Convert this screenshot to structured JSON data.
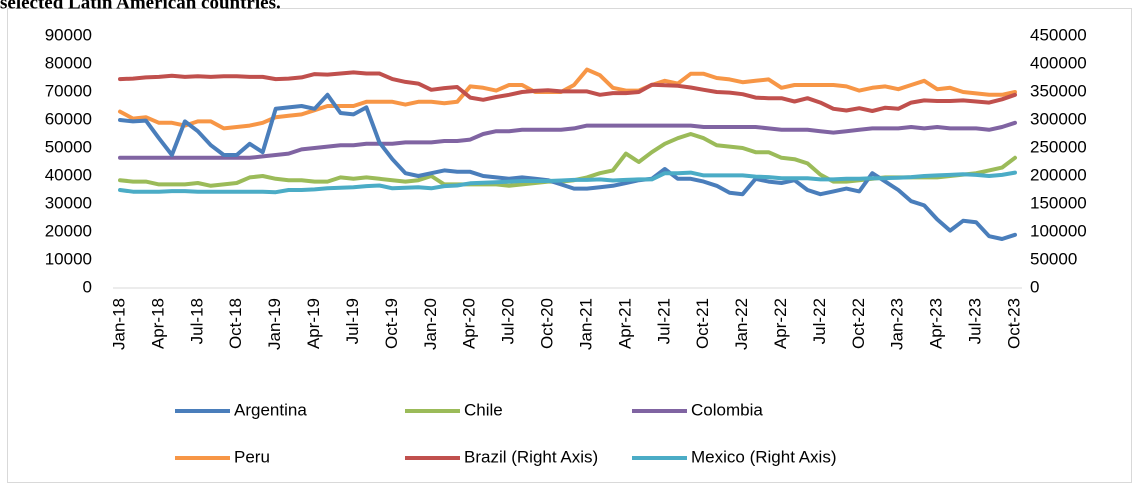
{
  "chart_data": {
    "type": "line",
    "caption": "selected Latin American countries.",
    "categories": [
      "Jan-18",
      null,
      null,
      "Apr-18",
      null,
      null,
      "Jul-18",
      null,
      null,
      "Oct-18",
      null,
      null,
      "Jan-19",
      null,
      null,
      "Apr-19",
      null,
      null,
      "Jul-19",
      null,
      null,
      "Oct-19",
      null,
      null,
      "Jan-20",
      null,
      null,
      "Apr-20",
      null,
      null,
      "Jul-20",
      null,
      null,
      "Oct-20",
      null,
      null,
      "Jan-21",
      null,
      null,
      "Apr-21",
      null,
      null,
      "Jul-21",
      null,
      null,
      "Oct-21",
      null,
      null,
      "Jan-22",
      null,
      null,
      "Apr-22",
      null,
      null,
      "Jul-22",
      null,
      null,
      "Oct-22",
      null,
      null,
      "Jan-23",
      null,
      null,
      "Apr-23",
      null,
      null,
      "Jul-23",
      null,
      null,
      "Oct-23"
    ],
    "ylim": [
      0,
      90000
    ],
    "yticks": [
      0,
      10000,
      20000,
      30000,
      40000,
      50000,
      60000,
      70000,
      80000,
      90000
    ],
    "y2lim": [
      0,
      450000
    ],
    "y2ticks": [
      0,
      50000,
      100000,
      150000,
      200000,
      250000,
      300000,
      350000,
      400000,
      450000
    ],
    "grid": false,
    "series": [
      {
        "name": "Argentina",
        "color": "#4a7ebb",
        "values": [
          60000,
          59500,
          59800,
          53500,
          47500,
          59500,
          56000,
          51000,
          47500,
          47500,
          51500,
          48500,
          64000,
          64500,
          65000,
          64000,
          69000,
          62500,
          62000,
          64500,
          52000,
          46000,
          41000,
          40000,
          41000,
          42000,
          41500,
          41500,
          40000,
          39500,
          39000,
          39500,
          39000,
          38500,
          37000,
          35500,
          35500,
          36000,
          36500,
          37500,
          38500,
          39000,
          42500,
          39000,
          39000,
          38000,
          36500,
          34000,
          33500,
          39000,
          38000,
          37500,
          38500,
          35000,
          33500,
          34500,
          35500,
          34500,
          41000,
          38000,
          35000,
          31000,
          29500,
          24500,
          20500,
          24000,
          23500,
          18500,
          17500,
          19000
        ]
      },
      {
        "name": "Chile",
        "color": "#9bbb59",
        "values": [
          38500,
          38000,
          38000,
          37000,
          37000,
          37000,
          37500,
          36500,
          37000,
          37500,
          39500,
          40000,
          39000,
          38500,
          38500,
          38000,
          38000,
          39500,
          39000,
          39500,
          39000,
          38500,
          38000,
          38500,
          40000,
          37000,
          37000,
          37000,
          37000,
          37000,
          36500,
          37000,
          37500,
          38000,
          38000,
          38500,
          39500,
          41000,
          42000,
          48000,
          45000,
          48500,
          51500,
          53500,
          55000,
          53500,
          51000,
          50500,
          50000,
          48500,
          48500,
          46500,
          46000,
          44500,
          40500,
          38000,
          38000,
          38500,
          39000,
          39500,
          39500,
          39500,
          39500,
          39500,
          40000,
          40500,
          41000,
          42000,
          43000,
          46500
        ]
      },
      {
        "name": "Colombia",
        "color": "#8064a2",
        "values": [
          46500,
          46500,
          46500,
          46500,
          46500,
          46500,
          46500,
          46500,
          46500,
          46500,
          46500,
          47000,
          47500,
          48000,
          49500,
          50000,
          50500,
          51000,
          51000,
          51500,
          51500,
          51500,
          52000,
          52000,
          52000,
          52500,
          52500,
          53000,
          55000,
          56000,
          56000,
          56500,
          56500,
          56500,
          56500,
          57000,
          58000,
          58000,
          58000,
          58000,
          58000,
          58000,
          58000,
          58000,
          58000,
          57500,
          57500,
          57500,
          57500,
          57500,
          57000,
          56500,
          56500,
          56500,
          56000,
          55500,
          56000,
          56500,
          57000,
          57000,
          57000,
          57500,
          57000,
          57500,
          57000,
          57000,
          57000,
          56500,
          57500,
          59000
        ]
      },
      {
        "name": "Peru",
        "color": "#f79646",
        "values": [
          63000,
          60500,
          61000,
          59000,
          59000,
          58000,
          59500,
          59500,
          57000,
          57500,
          58000,
          59000,
          61000,
          61500,
          62000,
          63500,
          65000,
          65000,
          65000,
          66500,
          66500,
          66500,
          65500,
          66500,
          66500,
          66000,
          66500,
          72000,
          71500,
          70500,
          72500,
          72500,
          70000,
          70000,
          70000,
          72500,
          78000,
          76000,
          71500,
          70500,
          70500,
          72500,
          74000,
          73000,
          76500,
          76500,
          75000,
          74500,
          73500,
          74000,
          74500,
          71500,
          72500,
          72500,
          72500,
          72500,
          72000,
          70500,
          71500,
          72000,
          71000,
          72500,
          74000,
          71000,
          71500,
          70000,
          69500,
          69000,
          69000,
          70000
        ]
      },
      {
        "name": "Brazil (Right Axis)",
        "color": "#c0504d",
        "axis": "y2",
        "values": [
          373000,
          374000,
          376000,
          377000,
          379000,
          377000,
          378000,
          377000,
          378000,
          378000,
          377000,
          377000,
          373000,
          374000,
          376000,
          382000,
          381000,
          383000,
          385000,
          383000,
          383000,
          373000,
          368000,
          365000,
          354000,
          357000,
          359000,
          340000,
          336000,
          341000,
          345000,
          350000,
          352000,
          353000,
          351000,
          351000,
          351000,
          345000,
          348000,
          348000,
          350000,
          363000,
          362000,
          361000,
          358000,
          354000,
          350000,
          349000,
          346000,
          340000,
          339000,
          339000,
          333000,
          339000,
          331000,
          320000,
          317000,
          321000,
          316000,
          322000,
          320000,
          331000,
          335000,
          334000,
          334000,
          335000,
          333000,
          331000,
          337000,
          345000
        ]
      },
      {
        "name": "Mexico (Right Axis)",
        "color": "#4bacc6",
        "axis": "y2",
        "values": [
          175000,
          172000,
          172000,
          172000,
          173000,
          173000,
          172000,
          172000,
          172000,
          172000,
          172000,
          172000,
          171000,
          175000,
          175000,
          176000,
          178000,
          179000,
          180000,
          182000,
          183000,
          178000,
          179000,
          180000,
          178000,
          182000,
          183000,
          187000,
          188000,
          189000,
          190000,
          191000,
          191000,
          191000,
          192000,
          193000,
          193000,
          194000,
          192000,
          193000,
          194000,
          194000,
          205000,
          205000,
          206000,
          201000,
          201000,
          201000,
          201000,
          199000,
          198000,
          196000,
          196000,
          196000,
          194000,
          194000,
          195000,
          195000,
          196000,
          196000,
          197000,
          198000,
          200000,
          201000,
          202000,
          203000,
          202000,
          200000,
          202000,
          206000
        ]
      }
    ]
  }
}
